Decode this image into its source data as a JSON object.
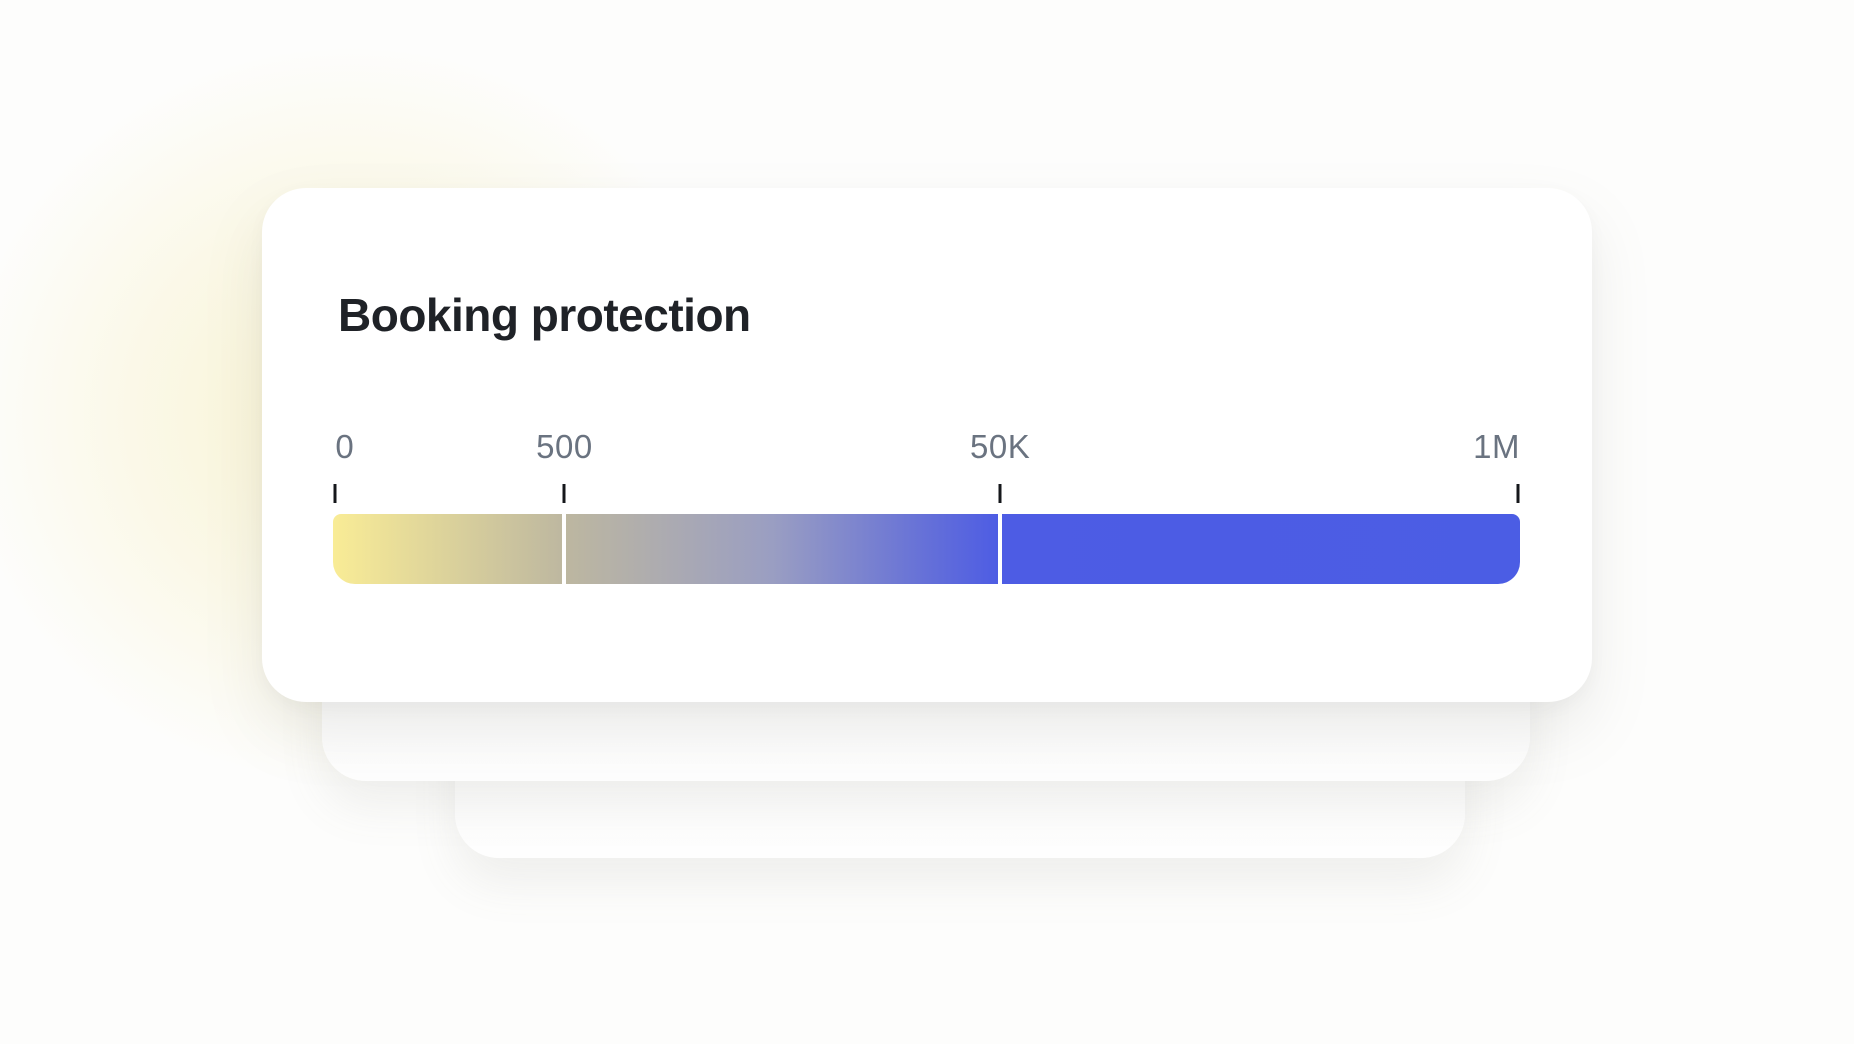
{
  "card": {
    "title": "Booking protection"
  },
  "chart_data": {
    "type": "bar",
    "subtype": "horizontal-gradient-tier-scale",
    "title": "Booking protection",
    "orientation": "horizontal",
    "tick_labels": [
      "0",
      "500",
      "50K",
      "1M"
    ],
    "tick_positions_pct": [
      0.2,
      19.5,
      56.2,
      99.8
    ],
    "divider_positions_pct": [
      19.5,
      56.2
    ],
    "segments": [
      {
        "range": "0 to 500",
        "start_pct": 0,
        "end_pct": 19.5
      },
      {
        "range": "500 to 50K",
        "start_pct": 19.5,
        "end_pct": 56.2
      },
      {
        "range": "50K to 1M",
        "start_pct": 56.2,
        "end_pct": 100
      }
    ],
    "gradient_stops": [
      {
        "pct": 0,
        "color": "#f9ec96"
      },
      {
        "pct": 19.5,
        "color": "#bdb7a0"
      },
      {
        "pct": 37,
        "color": "#9a9ec2"
      },
      {
        "pct": 50,
        "color": "#6570d8"
      },
      {
        "pct": 56.2,
        "color": "#4d5ce4"
      },
      {
        "pct": 100,
        "color": "#4b5de4"
      }
    ],
    "colors": {
      "label": "#6a7380",
      "tick": "#15171b",
      "divider": "#ffffff",
      "title": "#1f2227"
    },
    "legend": "none",
    "grid": false
  }
}
